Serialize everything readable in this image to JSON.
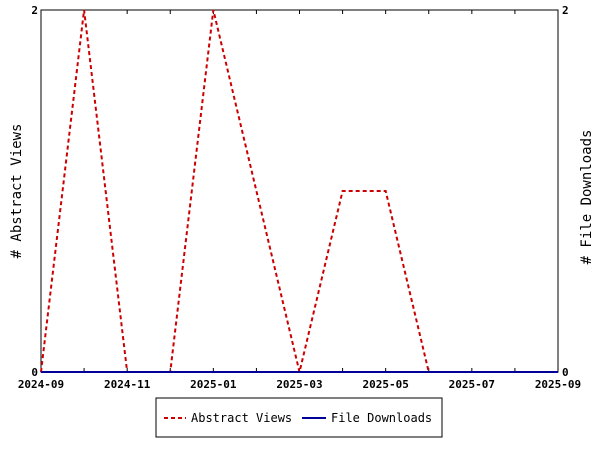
{
  "chart_data": {
    "type": "line",
    "x": [
      "2024-09",
      "2024-10",
      "2024-11",
      "2024-12",
      "2025-01",
      "2025-02",
      "2025-03",
      "2025-04",
      "2025-05",
      "2025-06",
      "2025-07",
      "2025-08",
      "2025-09"
    ],
    "x_tick_labels": [
      "2024-09",
      "2024-11",
      "2025-01",
      "2025-03",
      "2025-05",
      "2025-07",
      "2025-09"
    ],
    "ylabel_left": "# Abstract Views",
    "ylabel_right": "# File Downloads",
    "y_left_lim": [
      0,
      2
    ],
    "y_right_lim": [
      0,
      2
    ],
    "y_left_ticks": [
      "0",
      "2"
    ],
    "y_right_ticks": [
      "0",
      "2"
    ],
    "grid": false,
    "legend_position": "bottom",
    "series": [
      {
        "name": "Abstract Views",
        "axis": "left",
        "color": "#cc0000",
        "style": "dashed",
        "values": [
          0,
          2,
          0,
          0,
          2,
          1,
          0,
          1,
          1,
          0,
          0,
          0,
          0
        ]
      },
      {
        "name": "File Downloads",
        "axis": "right",
        "color": "#000099",
        "style": "solid",
        "values": [
          0,
          0,
          0,
          0,
          0,
          0,
          0,
          0,
          0,
          0,
          0,
          0,
          0
        ]
      }
    ]
  }
}
